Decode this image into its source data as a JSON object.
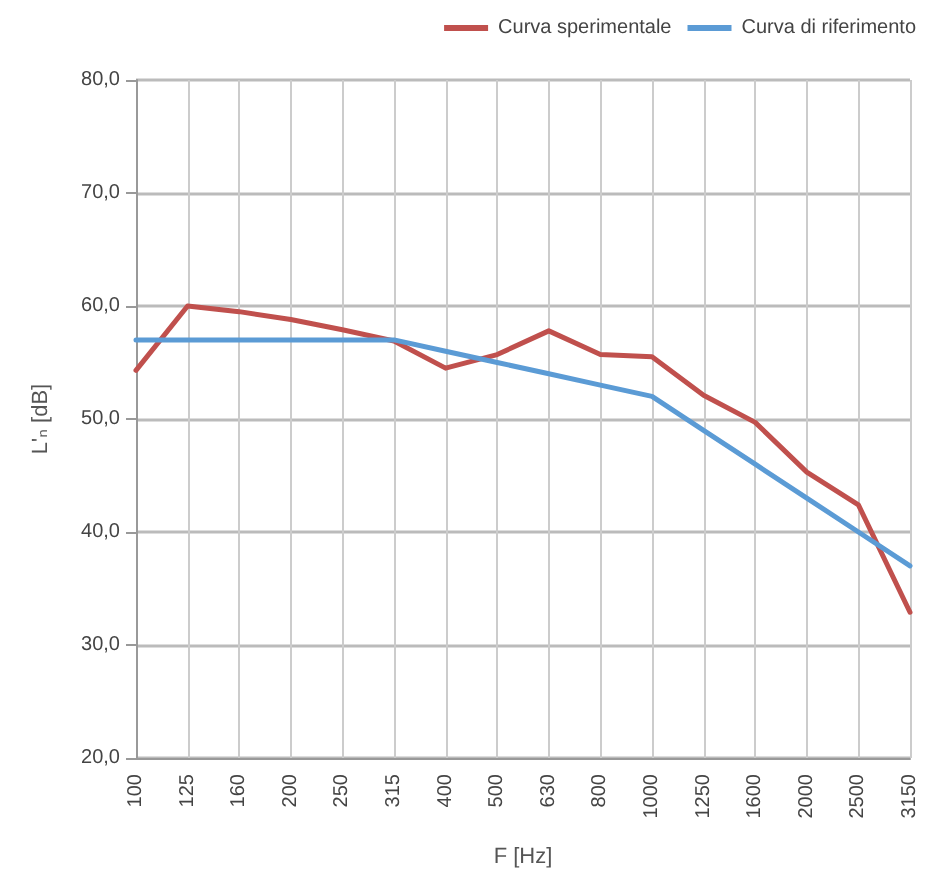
{
  "chart_data": {
    "type": "line",
    "xlabel": "F [Hz]",
    "ylabel": "L'ₙ [dB]",
    "categories": [
      "100",
      "125",
      "160",
      "200",
      "250",
      "315",
      "400",
      "500",
      "630",
      "800",
      "1000",
      "1250",
      "1600",
      "2000",
      "2500",
      "3150"
    ],
    "series": [
      {
        "name": "Curva sperimentale",
        "color": "#c0504d",
        "values": [
          54.3,
          60.0,
          59.5,
          58.8,
          57.9,
          56.9,
          54.5,
          55.7,
          57.8,
          55.7,
          55.5,
          52.1,
          49.7,
          45.3,
          42.4,
          32.9
        ]
      },
      {
        "name": "Curva di riferimento",
        "color": "#5b9bd5",
        "values": [
          57,
          57,
          57,
          57,
          57,
          57,
          56,
          55,
          54,
          53,
          52,
          49,
          46,
          43,
          40,
          37
        ]
      }
    ],
    "ylim": [
      20,
      80
    ],
    "yticks": [
      {
        "value": 20,
        "label": "20,0"
      },
      {
        "value": 30,
        "label": "30,0"
      },
      {
        "value": 40,
        "label": "40,0"
      },
      {
        "value": 50,
        "label": "50,0"
      },
      {
        "value": 60,
        "label": "60,0"
      },
      {
        "value": 70,
        "label": "70,0"
      },
      {
        "value": 80,
        "label": "80,0"
      }
    ],
    "grid": true,
    "legend": "top right",
    "marker": "none",
    "line_style": "solid"
  }
}
